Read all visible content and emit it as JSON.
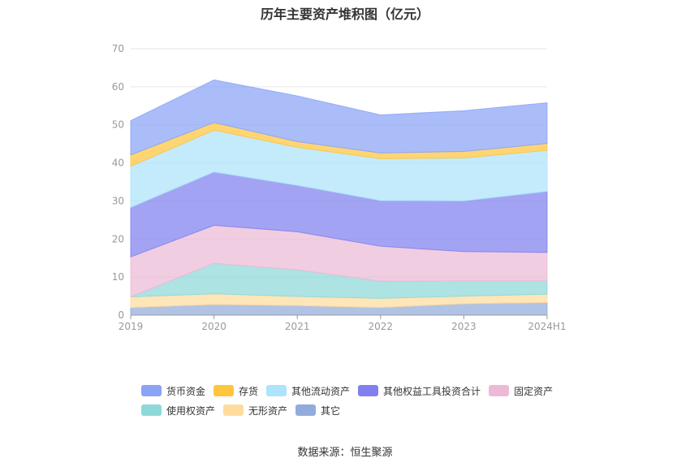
{
  "chart_data": {
    "type": "area",
    "stacked": true,
    "title": "历年主要资产堆积图（亿元）",
    "categories": [
      "2019",
      "2020",
      "2021",
      "2022",
      "2023",
      "2024H1"
    ],
    "ylim": [
      0,
      70
    ],
    "yticks": [
      0,
      10,
      20,
      30,
      40,
      50,
      60,
      70
    ],
    "grid": true,
    "legend_position": "bottom",
    "series": [
      {
        "name": "其它",
        "color": "#91acdb",
        "values": [
          2.0,
          2.8,
          2.5,
          2.0,
          3.0,
          3.3
        ]
      },
      {
        "name": "无形资产",
        "color": "#ffdc9e",
        "values": [
          2.8,
          2.8,
          2.4,
          2.4,
          2.0,
          2.2
        ]
      },
      {
        "name": "使用权资产",
        "color": "#8ed8d8",
        "values": [
          0.0,
          8.0,
          7.0,
          4.5,
          4.0,
          3.5
        ]
      },
      {
        "name": "固定资产",
        "color": "#ecbad6",
        "values": [
          10.5,
          10.0,
          10.0,
          9.2,
          7.7,
          7.5
        ]
      },
      {
        "name": "其他权益工具投资合计",
        "color": "#8080f0",
        "values": [
          13.0,
          14.0,
          12.2,
          12.0,
          13.3,
          16.0
        ]
      },
      {
        "name": "其他流动资产",
        "color": "#ade3fb",
        "values": [
          10.8,
          11.0,
          10.0,
          11.0,
          11.3,
          10.8
        ]
      },
      {
        "name": "存货",
        "color": "#ffc53d",
        "values": [
          3.0,
          2.0,
          1.5,
          1.5,
          1.7,
          1.8
        ]
      },
      {
        "name": "货币资金",
        "color": "#8aa3f7",
        "values": [
          9.0,
          11.2,
          12.0,
          10.0,
          10.7,
          10.7
        ]
      }
    ]
  },
  "legend": [
    {
      "label": "货币资金",
      "color": "#8aa3f7"
    },
    {
      "label": "存货",
      "color": "#ffc53d"
    },
    {
      "label": "其他流动资产",
      "color": "#ade3fb"
    },
    {
      "label": "其他权益工具投资合计",
      "color": "#8080f0"
    },
    {
      "label": "固定资产",
      "color": "#ecbad6"
    },
    {
      "label": "使用权资产",
      "color": "#8ed8d8"
    },
    {
      "label": "无形资产",
      "color": "#ffdc9e"
    },
    {
      "label": "其它",
      "color": "#91acdb"
    }
  ],
  "source": "数据来源：恒生聚源"
}
